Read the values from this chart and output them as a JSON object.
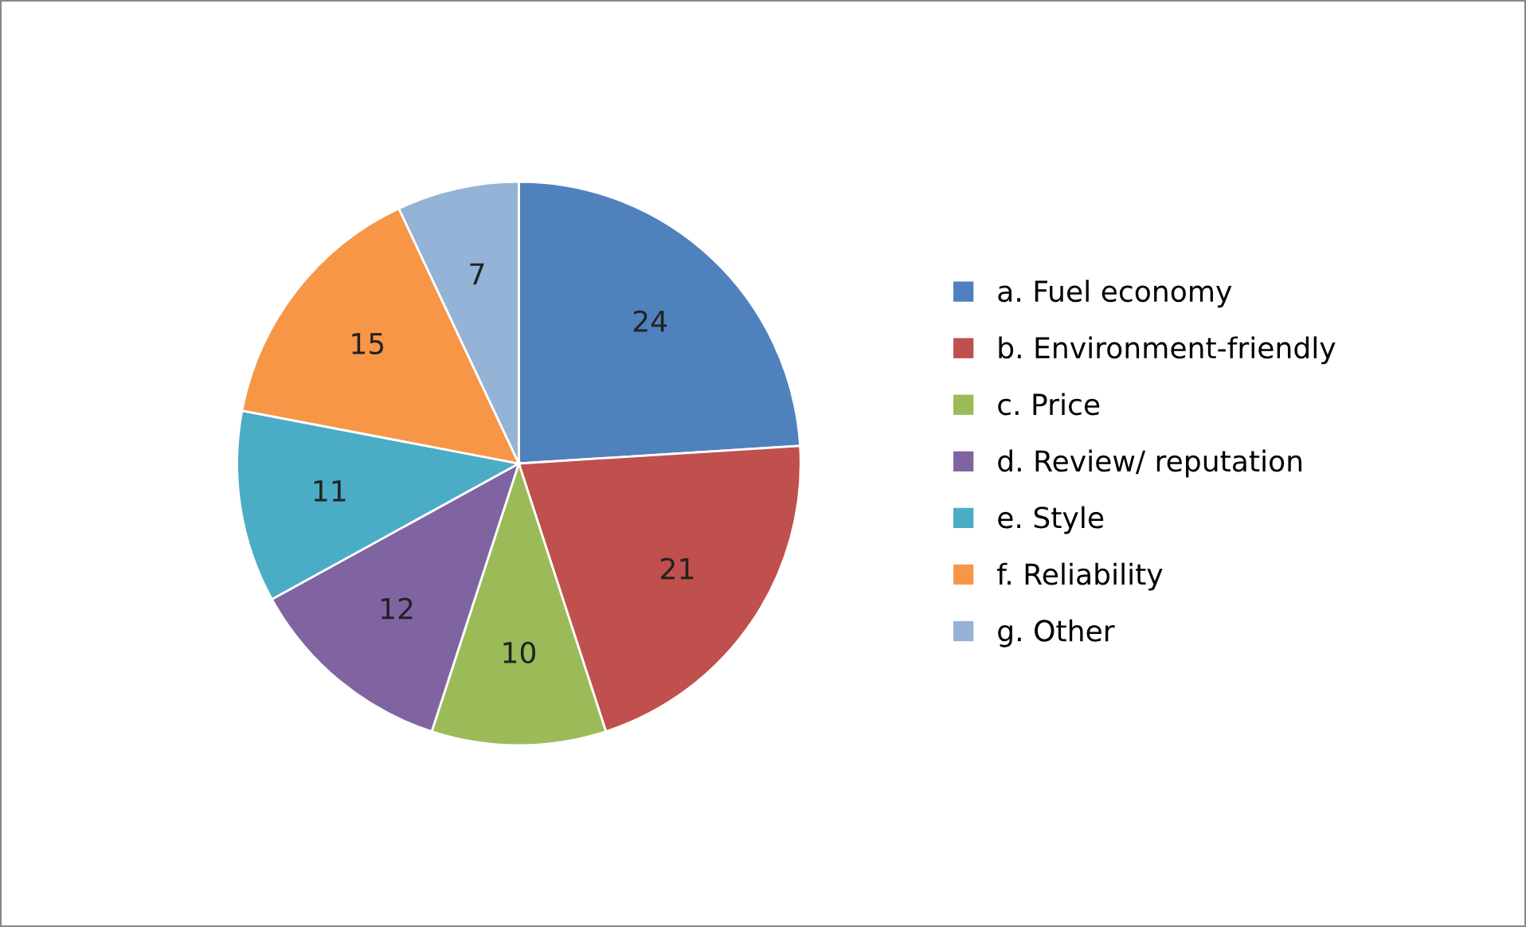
{
  "chart_data": {
    "type": "pie",
    "categories": [
      "a. Fuel economy",
      "b. Environment-friendly",
      "c. Price",
      "d. Review/ reputation",
      "e. Style",
      "f. Reliability",
      "g. Other"
    ],
    "values": [
      24,
      21,
      10,
      12,
      11,
      15,
      7
    ],
    "colors": [
      "#4f81bd",
      "#c0504d",
      "#9bbb59",
      "#8064a2",
      "#4bacc6",
      "#f79646",
      "#95b3d7"
    ],
    "data_labels": true,
    "legend": "right"
  }
}
